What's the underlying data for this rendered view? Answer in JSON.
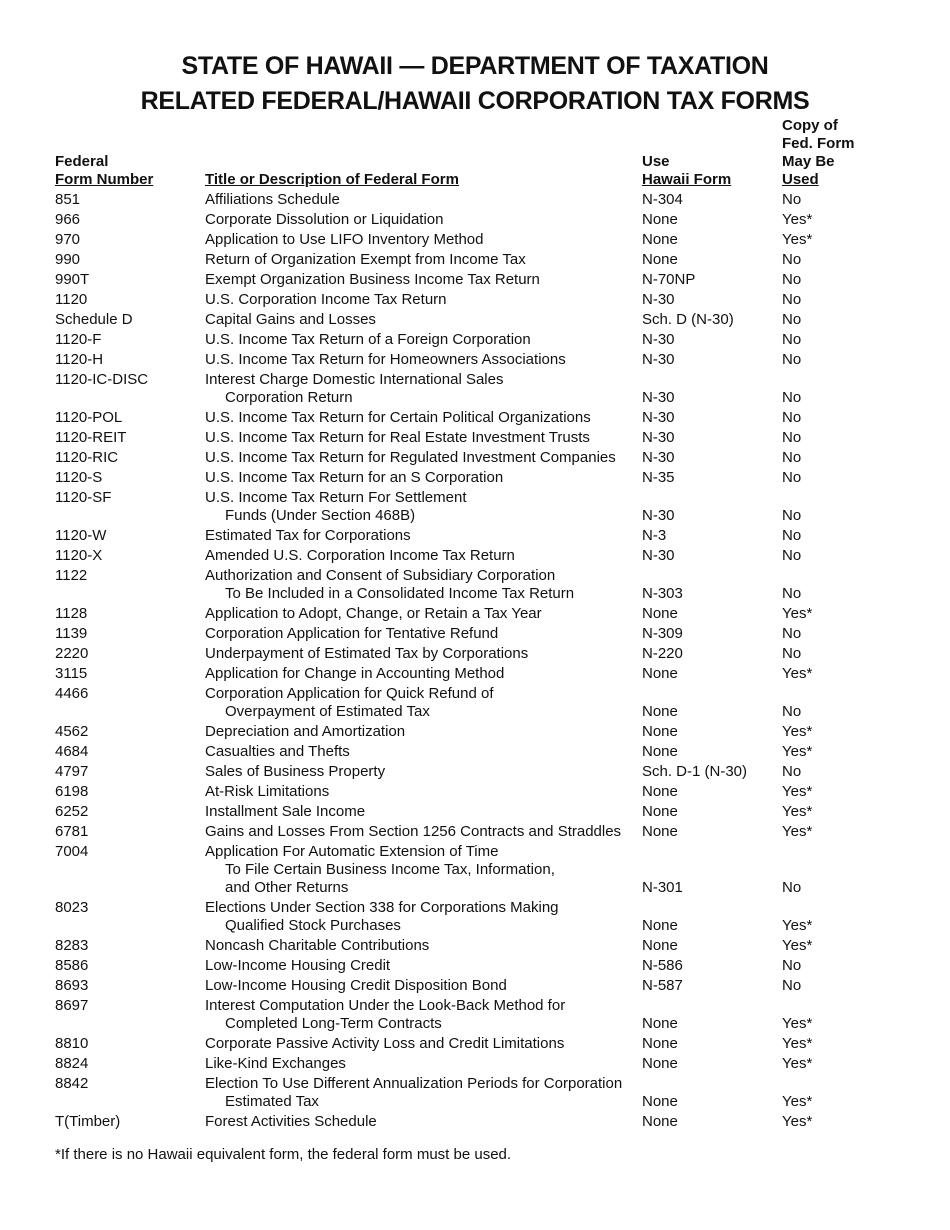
{
  "title_line1": "STATE OF HAWAII — DEPARTMENT OF TAXATION",
  "title_line2": "RELATED FEDERAL/HAWAII CORPORATION TAX FORMS",
  "headers": {
    "federal": [
      "Federal",
      "Form Number"
    ],
    "title": [
      "Title or Description of Federal Form"
    ],
    "hawaii": [
      "Use",
      "Hawaii Form"
    ],
    "copy": [
      "Copy of",
      "Fed. Form",
      "May Be",
      "Used"
    ]
  },
  "rows": [
    {
      "num": "851",
      "title": [
        "Affiliations Schedule"
      ],
      "hawaii": "N-304",
      "copy": "No"
    },
    {
      "num": "966",
      "title": [
        "Corporate Dissolution or Liquidation"
      ],
      "hawaii": "None",
      "copy": "Yes*"
    },
    {
      "num": "970",
      "title": [
        "Application to Use LIFO Inventory Method"
      ],
      "hawaii": "None",
      "copy": "Yes*"
    },
    {
      "num": "990",
      "title": [
        "Return of Organization Exempt from Income Tax"
      ],
      "hawaii": "None",
      "copy": "No"
    },
    {
      "num": "990T",
      "title": [
        "Exempt Organization Business Income Tax Return"
      ],
      "hawaii": "N-70NP",
      "copy": "No"
    },
    {
      "num": "1120",
      "title": [
        "U.S. Corporation Income Tax Return"
      ],
      "hawaii": "N-30",
      "copy": "No"
    },
    {
      "num": "Schedule D",
      "title": [
        "Capital Gains and Losses"
      ],
      "hawaii": "Sch. D (N-30)",
      "copy": "No"
    },
    {
      "num": "1120-F",
      "title": [
        "U.S. Income Tax Return of a Foreign Corporation"
      ],
      "hawaii": "N-30",
      "copy": "No"
    },
    {
      "num": "1120-H",
      "title": [
        "U.S. Income Tax Return for Homeowners Associations"
      ],
      "hawaii": "N-30",
      "copy": "No"
    },
    {
      "num": "1120-IC-DISC",
      "title": [
        "Interest Charge Domestic International Sales",
        "Corporation Return"
      ],
      "hawaii": "N-30",
      "copy": "No"
    },
    {
      "num": "1120-POL",
      "title": [
        "U.S. Income Tax Return for Certain Political Organizations"
      ],
      "hawaii": "N-30",
      "copy": "No"
    },
    {
      "num": "1120-REIT",
      "title": [
        "U.S. Income Tax Return for Real Estate Investment Trusts"
      ],
      "hawaii": "N-30",
      "copy": "No"
    },
    {
      "num": "1120-RIC",
      "title": [
        "U.S. Income Tax Return for Regulated Investment Companies"
      ],
      "hawaii": "N-30",
      "copy": "No"
    },
    {
      "num": "1120-S",
      "title": [
        "U.S. Income Tax Return for an S Corporation"
      ],
      "hawaii": "N-35",
      "copy": "No"
    },
    {
      "num": "1120-SF",
      "title": [
        "U.S. Income Tax Return For Settlement",
        "Funds (Under Section 468B)"
      ],
      "hawaii": "N-30",
      "copy": "No"
    },
    {
      "num": "1120-W",
      "title": [
        "Estimated Tax for Corporations"
      ],
      "hawaii": "N-3",
      "copy": "No"
    },
    {
      "num": "1120-X",
      "title": [
        "Amended U.S. Corporation Income Tax Return"
      ],
      "hawaii": "N-30",
      "copy": "No"
    },
    {
      "num": "1122",
      "title": [
        "Authorization and Consent of Subsidiary Corporation",
        "To Be Included in a Consolidated Income Tax Return"
      ],
      "hawaii": "N-303",
      "copy": "No"
    },
    {
      "num": "1128",
      "title": [
        "Application to Adopt, Change, or Retain a Tax Year"
      ],
      "hawaii": "None",
      "copy": "Yes*"
    },
    {
      "num": "1139",
      "title": [
        "Corporation Application for Tentative Refund"
      ],
      "hawaii": "N-309",
      "copy": "No"
    },
    {
      "num": "2220",
      "title": [
        "Underpayment of Estimated Tax by Corporations"
      ],
      "hawaii": "N-220",
      "copy": "No"
    },
    {
      "num": "3115",
      "title": [
        "Application for Change in Accounting Method"
      ],
      "hawaii": "None",
      "copy": "Yes*"
    },
    {
      "num": "4466",
      "title": [
        "Corporation Application for Quick Refund of",
        "Overpayment of Estimated Tax"
      ],
      "hawaii": "None",
      "copy": "No"
    },
    {
      "num": "4562",
      "title": [
        "Depreciation and Amortization"
      ],
      "hawaii": "None",
      "copy": "Yes*"
    },
    {
      "num": "4684",
      "title": [
        "Casualties and Thefts"
      ],
      "hawaii": "None",
      "copy": "Yes*"
    },
    {
      "num": "4797",
      "title": [
        "Sales of Business Property"
      ],
      "hawaii": "Sch. D-1 (N-30)",
      "copy": "No"
    },
    {
      "num": "6198",
      "title": [
        "At-Risk Limitations"
      ],
      "hawaii": "None",
      "copy": "Yes*"
    },
    {
      "num": "6252",
      "title": [
        "Installment Sale Income"
      ],
      "hawaii": "None",
      "copy": "Yes*"
    },
    {
      "num": "6781",
      "title": [
        "Gains and Losses From Section 1256 Contracts and Straddles"
      ],
      "hawaii": "None",
      "copy": "Yes*"
    },
    {
      "num": "7004",
      "title": [
        "Application For Automatic Extension of Time",
        "To File Certain Business Income Tax, Information,",
        "and Other Returns"
      ],
      "hawaii": "N-301",
      "copy": "No"
    },
    {
      "num": "8023",
      "title": [
        "Elections Under Section 338 for Corporations Making",
        "Qualified Stock Purchases"
      ],
      "hawaii": "None",
      "copy": "Yes*"
    },
    {
      "num": "8283",
      "title": [
        "Noncash Charitable Contributions"
      ],
      "hawaii": "None",
      "copy": "Yes*"
    },
    {
      "num": "8586",
      "title": [
        "Low-Income Housing Credit"
      ],
      "hawaii": "N-586",
      "copy": "No"
    },
    {
      "num": "8693",
      "title": [
        "Low-Income Housing Credit Disposition Bond"
      ],
      "hawaii": "N-587",
      "copy": "No"
    },
    {
      "num": "8697",
      "title": [
        "Interest Computation Under the Look-Back Method for",
        "Completed Long-Term Contracts"
      ],
      "hawaii": "None",
      "copy": "Yes*"
    },
    {
      "num": "8810",
      "title": [
        "Corporate Passive Activity Loss and Credit Limitations"
      ],
      "hawaii": "None",
      "copy": "Yes*"
    },
    {
      "num": "8824",
      "title": [
        "Like-Kind Exchanges"
      ],
      "hawaii": "None",
      "copy": "Yes*"
    },
    {
      "num": "8842",
      "title": [
        "Election To Use Different Annualization Periods for Corporation",
        "Estimated Tax"
      ],
      "hawaii": "None",
      "copy": "Yes*"
    },
    {
      "num": "T(Timber)",
      "title": [
        "Forest Activities Schedule"
      ],
      "hawaii": "None",
      "copy": "Yes*"
    }
  ],
  "footnote": "*If there is no Hawaii equivalent form, the federal form must be used."
}
